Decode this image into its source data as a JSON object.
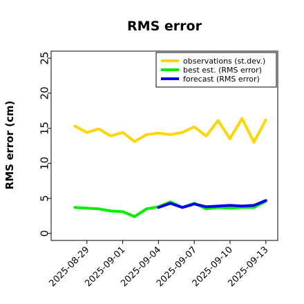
{
  "chart_data": {
    "type": "line",
    "title": "RMS error",
    "ylabel": "RMS error (cm)",
    "xlabel": "",
    "ylim": [
      -1,
      26
    ],
    "xlim": [
      "2025-08-26",
      "2025-09-14"
    ],
    "yticks": [
      "0",
      "5",
      "10",
      "15",
      "20",
      "25"
    ],
    "xticks": [
      "2025-08-29",
      "2025-09-01",
      "2025-09-04",
      "2025-09-07",
      "2025-09-10",
      "2025-09-13"
    ],
    "highlight_xtick": "2025-09-04",
    "highlight_color": "#228b22",
    "grid": false,
    "legend_position": "top-right",
    "series": [
      {
        "name": "observations (st.dev.)",
        "color": "#ffd700",
        "x": [
          "2025-08-28",
          "2025-08-29",
          "2025-08-30",
          "2025-08-31",
          "2025-09-01",
          "2025-09-02",
          "2025-09-03",
          "2025-09-04",
          "2025-09-05",
          "2025-09-06",
          "2025-09-07",
          "2025-09-08",
          "2025-09-09",
          "2025-09-10",
          "2025-09-11",
          "2025-09-12",
          "2025-09-13"
        ],
        "values": [
          15.3,
          14.4,
          14.9,
          13.9,
          14.4,
          13.1,
          14.1,
          14.3,
          14.1,
          14.4,
          15.2,
          13.9,
          16.1,
          13.5,
          16.4,
          13.0,
          16.2
        ]
      },
      {
        "name": "best est. (RMS error)",
        "color": "#00ee00",
        "x": [
          "2025-08-28",
          "2025-08-29",
          "2025-08-30",
          "2025-08-31",
          "2025-09-01",
          "2025-09-02",
          "2025-09-03",
          "2025-09-04",
          "2025-09-05",
          "2025-09-06",
          "2025-09-07",
          "2025-09-08",
          "2025-09-09",
          "2025-09-10",
          "2025-09-11",
          "2025-09-12",
          "2025-09-13"
        ],
        "values": [
          3.7,
          3.6,
          3.5,
          3.2,
          3.1,
          2.4,
          3.5,
          3.8,
          4.5,
          3.7,
          4.3,
          3.5,
          3.7,
          3.6,
          3.7,
          3.7,
          4.6
        ]
      },
      {
        "name": "forecast (RMS error)",
        "color": "#0000ee",
        "x": [
          "2025-09-04",
          "2025-09-05",
          "2025-09-06",
          "2025-09-07",
          "2025-09-08",
          "2025-09-09",
          "2025-09-10",
          "2025-09-11",
          "2025-09-12",
          "2025-09-13"
        ],
        "values": [
          3.7,
          4.3,
          3.7,
          4.2,
          3.8,
          3.9,
          4.0,
          3.9,
          4.0,
          4.7
        ]
      }
    ]
  }
}
